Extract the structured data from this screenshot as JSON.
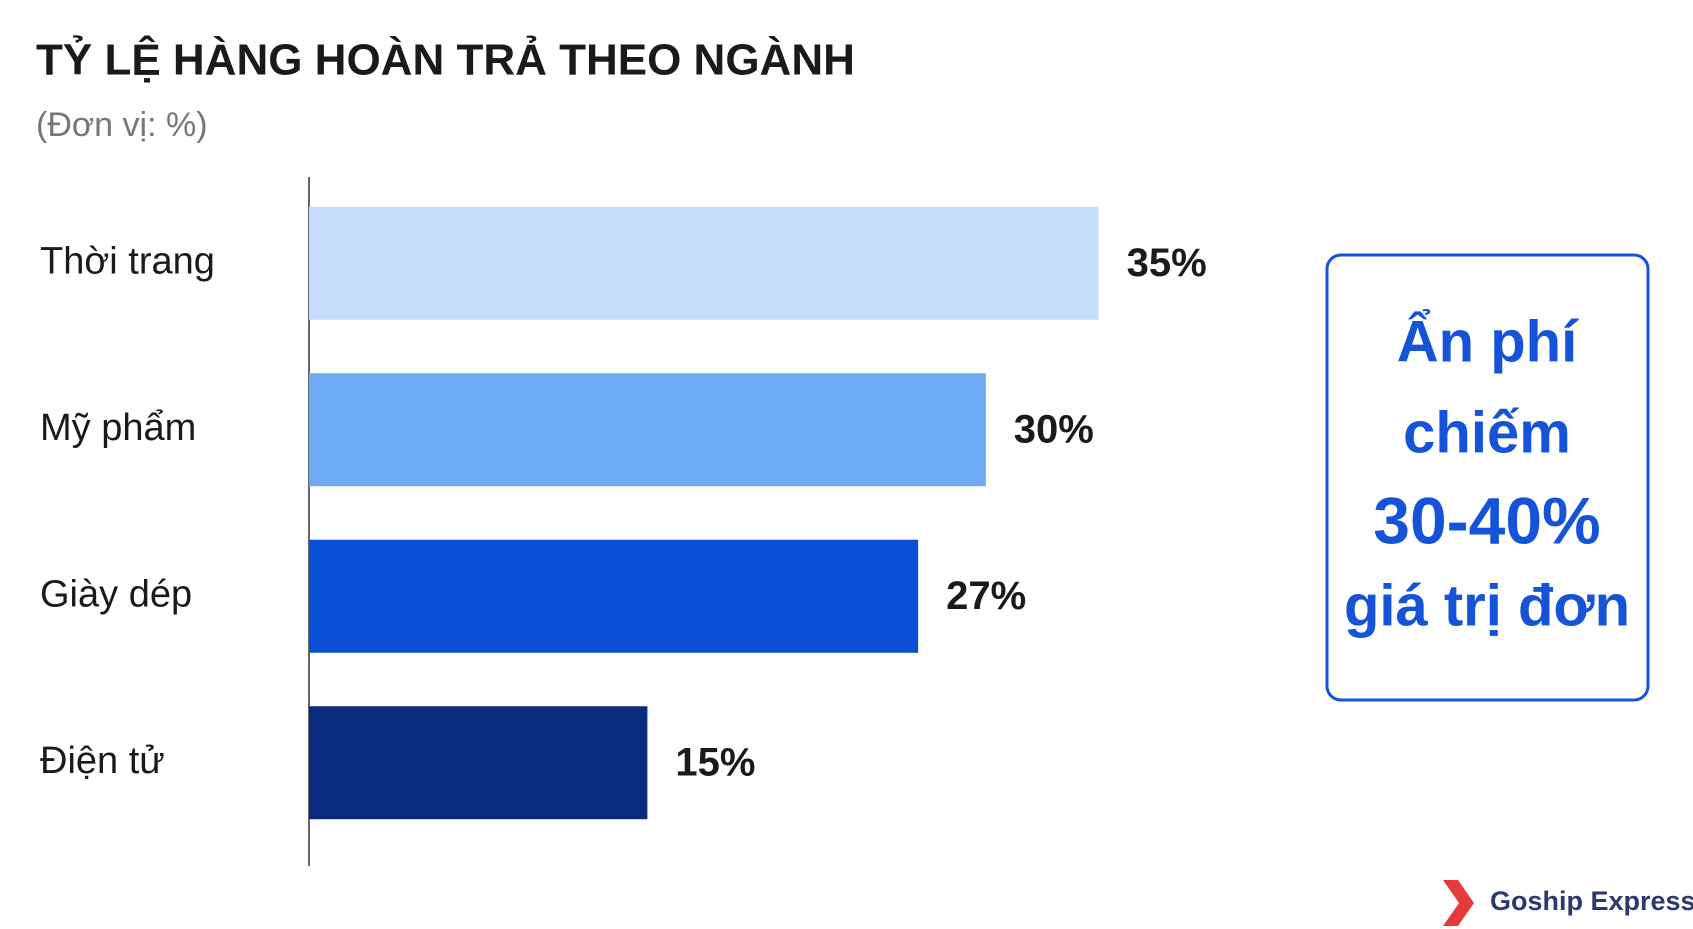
{
  "chart_data": {
    "type": "bar",
    "orientation": "horizontal",
    "title": "TỶ LỆ HÀNG HOÀN TRẢ THEO NGÀNH",
    "subtitle": "(Đơn vị: %)",
    "categories": [
      "Thời trang",
      "Mỹ phẩm",
      "Giày dép",
      "Điện tử"
    ],
    "values": [
      35,
      30,
      27,
      15
    ],
    "value_labels": [
      "35%",
      "30%",
      "27%",
      "15%"
    ],
    "colors": [
      "#c5ddfa",
      "#6eaaf4",
      "#0a4fd6",
      "#0a2b7c"
    ],
    "xlim": [
      0,
      50
    ],
    "annotation": [
      "Ẩn phí",
      "chiếm",
      "30-40%",
      "giá trị đơn"
    ],
    "logo": "Goship Express"
  }
}
